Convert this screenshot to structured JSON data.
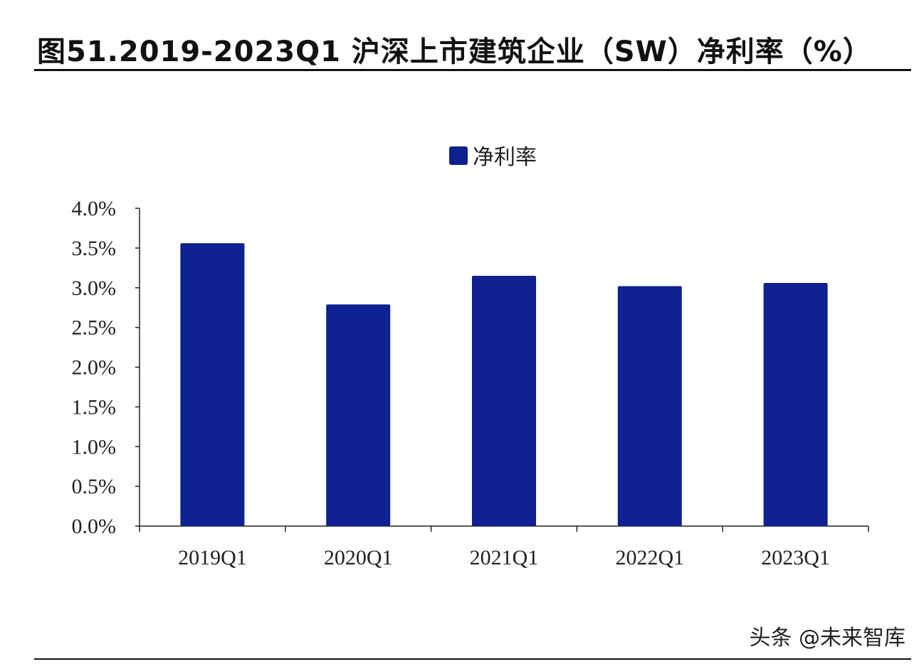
{
  "title": "图51.2019-2023Q1 沪深上市建筑企业（SW）净利率（%）",
  "watermark": "头条 @未来智库",
  "chart_data": {
    "type": "bar",
    "title": "",
    "xlabel": "",
    "ylabel": "",
    "categories": [
      "2019Q1",
      "2020Q1",
      "2021Q1",
      "2022Q1",
      "2023Q1"
    ],
    "series": [
      {
        "name": "净利率",
        "values": [
          3.56,
          2.79,
          3.15,
          3.02,
          3.06
        ],
        "color": "#0d2190"
      }
    ],
    "ylim": [
      0,
      4.0
    ],
    "yticks": [
      "0.0%",
      "0.5%",
      "1.0%",
      "1.5%",
      "2.0%",
      "2.5%",
      "3.0%",
      "3.5%",
      "4.0%"
    ],
    "grid": false,
    "legend_position": "top-center"
  }
}
